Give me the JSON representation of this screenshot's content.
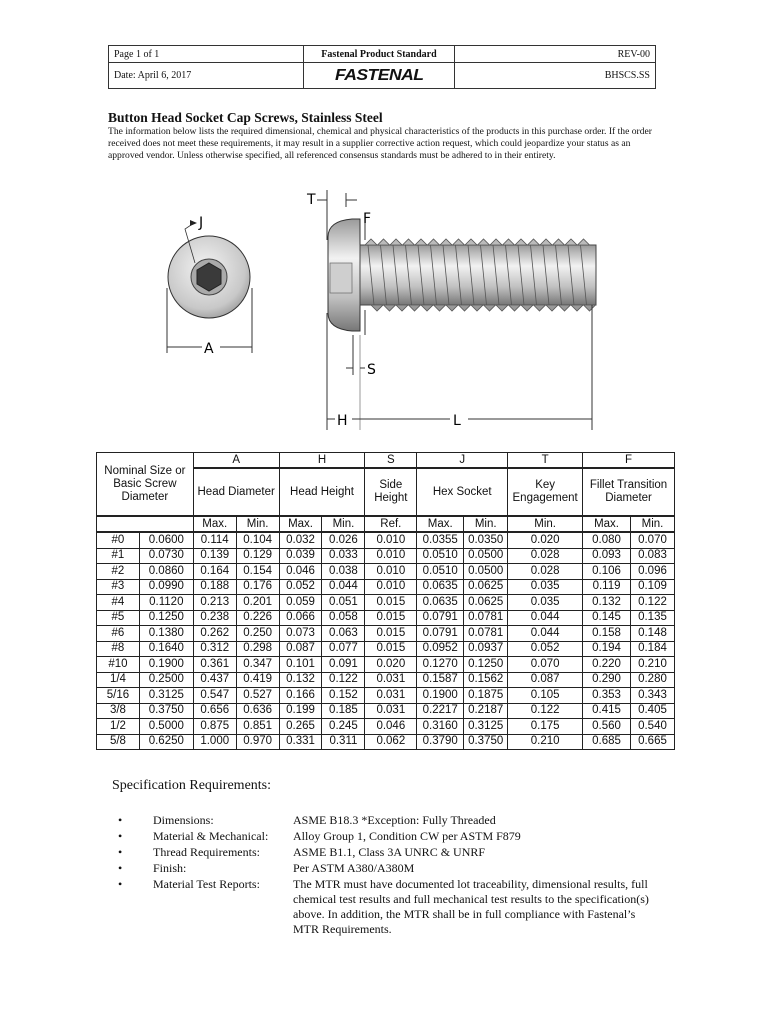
{
  "header": {
    "page": "Page 1 of 1",
    "standard": "Fastenal Product Standard",
    "rev": "REV-00",
    "date": "Date: April 6, 2017",
    "logo": "FASTENAL",
    "code": "BHSCS.SS"
  },
  "title": "Button Head Socket Cap Screws, Stainless Steel",
  "intro": "The information below lists the required dimensional, chemical and physical characteristics of the products in this purchase order.  If the order received does not meet these requirements, it may result in a supplier corrective action request, which could jeopardize your status as an approved vendor. Unless otherwise specified, all referenced consensus standards must be adhered to in their entirety.",
  "drawing": {
    "labels": {
      "J": "J",
      "A": "A",
      "T": "T",
      "F": "F",
      "S": "S",
      "H": "H",
      "L": "L"
    }
  },
  "table": {
    "nominal_header": "Nominal Size or Basic Screw Diameter",
    "groups": [
      {
        "letter": "A",
        "name": "Head Diameter",
        "sub": [
          "Max.",
          "Min."
        ]
      },
      {
        "letter": "H",
        "name": "Head Height",
        "sub": [
          "Max.",
          "Min."
        ]
      },
      {
        "letter": "S",
        "name": "Side Height",
        "sub": [
          "Ref."
        ]
      },
      {
        "letter": "J",
        "name": "Hex Socket",
        "sub": [
          "Max.",
          "Min."
        ]
      },
      {
        "letter": "T",
        "name": "Key Engagement",
        "sub": [
          "Min."
        ]
      },
      {
        "letter": "F",
        "name": "Fillet Transition Diameter",
        "sub": [
          "Max.",
          "Min."
        ]
      }
    ],
    "rows": [
      [
        "#0",
        "0.0600",
        "0.114",
        "0.104",
        "0.032",
        "0.026",
        "0.010",
        "0.0355",
        "0.0350",
        "0.020",
        "0.080",
        "0.070"
      ],
      [
        "#1",
        "0.0730",
        "0.139",
        "0.129",
        "0.039",
        "0.033",
        "0.010",
        "0.0510",
        "0.0500",
        "0.028",
        "0.093",
        "0.083"
      ],
      [
        "#2",
        "0.0860",
        "0.164",
        "0.154",
        "0.046",
        "0.038",
        "0.010",
        "0.0510",
        "0.0500",
        "0.028",
        "0.106",
        "0.096"
      ],
      [
        "#3",
        "0.0990",
        "0.188",
        "0.176",
        "0.052",
        "0.044",
        "0.010",
        "0.0635",
        "0.0625",
        "0.035",
        "0.119",
        "0.109"
      ],
      [
        "#4",
        "0.1120",
        "0.213",
        "0.201",
        "0.059",
        "0.051",
        "0.015",
        "0.0635",
        "0.0625",
        "0.035",
        "0.132",
        "0.122"
      ],
      [
        "#5",
        "0.1250",
        "0.238",
        "0.226",
        "0.066",
        "0.058",
        "0.015",
        "0.0791",
        "0.0781",
        "0.044",
        "0.145",
        "0.135"
      ],
      [
        "#6",
        "0.1380",
        "0.262",
        "0.250",
        "0.073",
        "0.063",
        "0.015",
        "0.0791",
        "0.0781",
        "0.044",
        "0.158",
        "0.148"
      ],
      [
        "#8",
        "0.1640",
        "0.312",
        "0.298",
        "0.087",
        "0.077",
        "0.015",
        "0.0952",
        "0.0937",
        "0.052",
        "0.194",
        "0.184"
      ],
      [
        "#10",
        "0.1900",
        "0.361",
        "0.347",
        "0.101",
        "0.091",
        "0.020",
        "0.1270",
        "0.1250",
        "0.070",
        "0.220",
        "0.210"
      ],
      [
        "1/4",
        "0.2500",
        "0.437",
        "0.419",
        "0.132",
        "0.122",
        "0.031",
        "0.1587",
        "0.1562",
        "0.087",
        "0.290",
        "0.280"
      ],
      [
        "5/16",
        "0.3125",
        "0.547",
        "0.527",
        "0.166",
        "0.152",
        "0.031",
        "0.1900",
        "0.1875",
        "0.105",
        "0.353",
        "0.343"
      ],
      [
        "3/8",
        "0.3750",
        "0.656",
        "0.636",
        "0.199",
        "0.185",
        "0.031",
        "0.2217",
        "0.2187",
        "0.122",
        "0.415",
        "0.405"
      ],
      [
        "1/2",
        "0.5000",
        "0.875",
        "0.851",
        "0.265",
        "0.245",
        "0.046",
        "0.3160",
        "0.3125",
        "0.175",
        "0.560",
        "0.540"
      ],
      [
        "5/8",
        "0.6250",
        "1.000",
        "0.970",
        "0.331",
        "0.311",
        "0.062",
        "0.3790",
        "0.3750",
        "0.210",
        "0.685",
        "0.665"
      ]
    ]
  },
  "spec": {
    "heading": "Specification Requirements:",
    "bullet": "•",
    "items": [
      {
        "label": "Dimensions:",
        "value": "ASME B18.3 *Exception: Fully Threaded"
      },
      {
        "label": "Material & Mechanical:",
        "value": "Alloy Group 1, Condition CW per ASTM F879"
      },
      {
        "label": "Thread Requirements:",
        "value": "ASME B1.1, Class 3A UNRC & UNRF"
      },
      {
        "label": "Finish:",
        "value": "Per ASTM A380/A380M"
      },
      {
        "label": "Material Test Reports:",
        "value": "The MTR must have documented lot traceability, dimensional results, full chemical test results and full mechanical test results to the specification(s) above.  In addition, the MTR shall be in full compliance with Fastenal’s MTR Requirements."
      }
    ]
  }
}
